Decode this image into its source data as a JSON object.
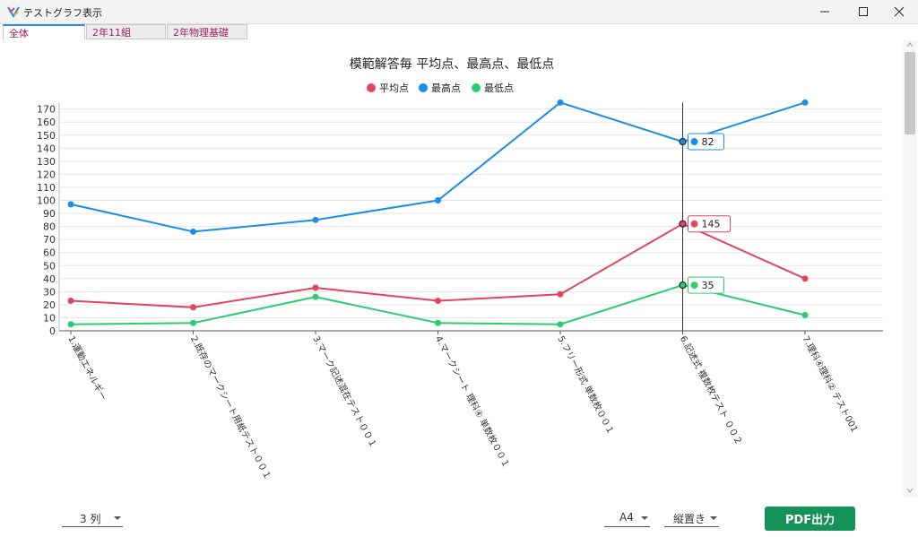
{
  "window": {
    "title": "テストグラフ表示"
  },
  "tabs": [
    {
      "label": "全体"
    },
    {
      "label": "2年11組"
    },
    {
      "label": "2年物理基礎"
    }
  ],
  "footer": {
    "columns_select": "3 列",
    "paper_select": "A4",
    "orientation_select": "縦置き",
    "pdf_button": "PDF出力"
  },
  "colors": {
    "avg": "#e0465e",
    "max": "#1a8fe8",
    "min": "#2ecc71",
    "accent": "#149257"
  },
  "chart_data": {
    "type": "line",
    "title": "模範解答毎 平均点、最高点、最低点",
    "categories": [
      "1.運動エネルギー",
      "2.既存のマークシート用紙テスト００１",
      "3.マーク記述混在テスト００１",
      "4.マークシート 理科④ 単数枚００１",
      "5.フリー形式 単数枚００１",
      "6.記述式 複数枚テスト ００２",
      "7.理科④理科② テスト001"
    ],
    "series": [
      {
        "name": "平均点",
        "color": "#e0465e",
        "values": [
          23,
          18,
          33,
          23,
          28,
          82,
          40
        ]
      },
      {
        "name": "最高点",
        "color": "#1a8fe8",
        "values": [
          97,
          76,
          85,
          100,
          175,
          145,
          175
        ]
      },
      {
        "name": "最低点",
        "color": "#2ecc71",
        "values": [
          5,
          6,
          26,
          6,
          5,
          35,
          12
        ]
      }
    ],
    "yticks": [
      0,
      10,
      20,
      30,
      40,
      50,
      60,
      70,
      80,
      90,
      100,
      110,
      120,
      130,
      140,
      150,
      160,
      170
    ],
    "ylim": [
      0,
      175
    ],
    "grid": true,
    "legend": "top-center",
    "highlight_index": 5,
    "tooltip_values": [
      "145",
      "82",
      "35"
    ]
  }
}
